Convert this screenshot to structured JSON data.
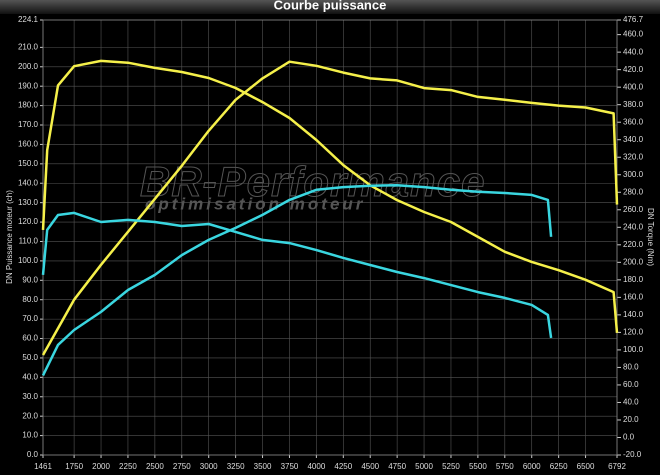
{
  "chart_data": {
    "type": "line",
    "title": "Courbe puissance",
    "y_label": "DN Puissance moteur (ch)",
    "y2_label": "DN Torque (Nm)",
    "watermark": [
      "BR-Performance",
      "optimisation moteur"
    ],
    "xlim": [
      1461,
      6792
    ],
    "xticks": [
      1461,
      1750,
      2000,
      2250,
      2500,
      2750,
      3000,
      3250,
      3500,
      3750,
      4000,
      4250,
      4500,
      4750,
      5000,
      5250,
      5500,
      5750,
      6000,
      6250,
      6500,
      6792
    ],
    "ylim": [
      0,
      224.1
    ],
    "yticks": [
      {
        "value": 0,
        "label": "0.0"
      },
      {
        "value": 10,
        "label": "10.0"
      },
      {
        "value": 20,
        "label": "20.0"
      },
      {
        "value": 30,
        "label": "30.0"
      },
      {
        "value": 40,
        "label": "40.0"
      },
      {
        "value": 50,
        "label": "50.0"
      },
      {
        "value": 60,
        "label": "60.0"
      },
      {
        "value": 70,
        "label": "70.0"
      },
      {
        "value": 80,
        "label": "80.0"
      },
      {
        "value": 90,
        "label": "90.0"
      },
      {
        "value": 100,
        "label": "100.0"
      },
      {
        "value": 110,
        "label": "110.0"
      },
      {
        "value": 120,
        "label": "120.0"
      },
      {
        "value": 130,
        "label": "130.0"
      },
      {
        "value": 140,
        "label": "140.0"
      },
      {
        "value": 150,
        "label": "150.0"
      },
      {
        "value": 160,
        "label": "160.0"
      },
      {
        "value": 170,
        "label": "170.0"
      },
      {
        "value": 180,
        "label": "180.0"
      },
      {
        "value": 190,
        "label": "190.0"
      },
      {
        "value": 200,
        "label": "200.0"
      },
      {
        "value": 210,
        "label": "210.0"
      },
      {
        "value": 224.1,
        "label": "224.1"
      }
    ],
    "y2lim": [
      -20,
      476.7
    ],
    "y2ticks": [
      {
        "value": -20,
        "label": "-20.0"
      },
      {
        "value": 0,
        "label": "0.0"
      },
      {
        "value": 20,
        "label": "20.0"
      },
      {
        "value": 40,
        "label": "40.0"
      },
      {
        "value": 60,
        "label": "60.0"
      },
      {
        "value": 80,
        "label": "80.0"
      },
      {
        "value": 100,
        "label": "100.0"
      },
      {
        "value": 120,
        "label": "120.0"
      },
      {
        "value": 140,
        "label": "140.0"
      },
      {
        "value": 160,
        "label": "160.0"
      },
      {
        "value": 180,
        "label": "180.0"
      },
      {
        "value": 200,
        "label": "200.0"
      },
      {
        "value": 220,
        "label": "220.0"
      },
      {
        "value": 240,
        "label": "240.0"
      },
      {
        "value": 260,
        "label": "260.0"
      },
      {
        "value": 280,
        "label": "280.0"
      },
      {
        "value": 300,
        "label": "300.0"
      },
      {
        "value": 320,
        "label": "320.0"
      },
      {
        "value": 340,
        "label": "340.0"
      },
      {
        "value": 360,
        "label": "360.0"
      },
      {
        "value": 380,
        "label": "380.0"
      },
      {
        "value": 400,
        "label": "400.0"
      },
      {
        "value": 420,
        "label": "420.0"
      },
      {
        "value": 440,
        "label": "440.0"
      },
      {
        "value": 460,
        "label": "460.0"
      },
      {
        "value": 476.7,
        "label": "476.7"
      }
    ],
    "grid": true,
    "series": [
      {
        "color": "#f5f04a",
        "axis": "y",
        "x": [
          1461,
          1750,
          2000,
          2250,
          2500,
          2750,
          3000,
          3250,
          3500,
          3750,
          4000,
          4250,
          4500,
          4750,
          5000,
          5250,
          5500,
          5750,
          6000,
          6250,
          6500,
          6760,
          6792
        ],
        "values": [
          51.5,
          80,
          98,
          115,
          132,
          149,
          167,
          183,
          194,
          202.6,
          200.5,
          197,
          194,
          193,
          189,
          188,
          184.5,
          183,
          181.4,
          180,
          179,
          176,
          129
        ]
      },
      {
        "color": "#f5f04a",
        "axis": "y2",
        "x": [
          1461,
          1500,
          1600,
          1750,
          2000,
          2250,
          2500,
          2750,
          3000,
          3250,
          3500,
          3750,
          4000,
          4250,
          4500,
          4750,
          5000,
          5250,
          5500,
          5750,
          6000,
          6250,
          6500,
          6760,
          6792
        ],
        "values": [
          237,
          328,
          402,
          424,
          430,
          428,
          422,
          417.3,
          410.5,
          399,
          383,
          364.8,
          339.7,
          311,
          288,
          271,
          257.5,
          246,
          229,
          212,
          200.5,
          191,
          180,
          166,
          119.4
        ]
      },
      {
        "color": "#3ad6e0",
        "axis": "y",
        "x": [
          1461,
          1600,
          1750,
          2000,
          2250,
          2500,
          2750,
          3000,
          3250,
          3500,
          3750,
          4000,
          4250,
          4500,
          4750,
          5000,
          5250,
          5500,
          5750,
          6000,
          6150,
          6180
        ],
        "values": [
          41,
          56.7,
          64.4,
          73.7,
          85,
          92.8,
          103,
          110.8,
          117,
          123.7,
          131.4,
          136.6,
          138,
          138.7,
          139,
          138,
          136.6,
          135.6,
          135,
          134,
          131.4,
          112.4
        ]
      },
      {
        "color": "#3ad6e0",
        "axis": "y2",
        "x": [
          1461,
          1500,
          1600,
          1750,
          2000,
          2250,
          2500,
          2750,
          3000,
          3250,
          3500,
          3750,
          4000,
          4250,
          4500,
          4750,
          5000,
          5250,
          5500,
          5750,
          6000,
          6150,
          6180
        ],
        "values": [
          185.6,
          237,
          254,
          256.4,
          246,
          248.4,
          246,
          241.5,
          243.8,
          234.7,
          225.6,
          222,
          214,
          205,
          197,
          189,
          182,
          174,
          166,
          159.4,
          151.4,
          140,
          113.7
        ]
      }
    ]
  }
}
